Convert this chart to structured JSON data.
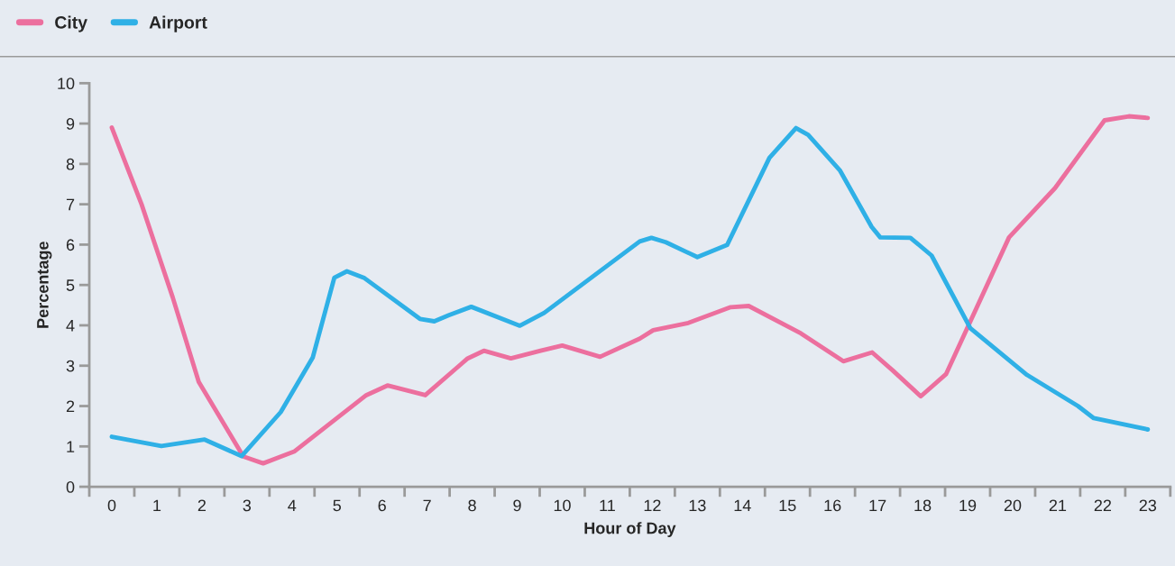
{
  "chart_data": {
    "type": "line",
    "xlabel": "Hour of Day",
    "ylabel": "Percentage",
    "xlim": [
      -0.5,
      23.5
    ],
    "ylim": [
      0,
      10
    ],
    "yticks": [
      0,
      1,
      2,
      3,
      4,
      5,
      6,
      7,
      8,
      9,
      10
    ],
    "xticks": [
      {
        "value": -0.5,
        "label": null
      },
      0,
      {
        "value": 0.5,
        "label": null
      },
      1,
      {
        "value": 1.5,
        "label": null
      },
      2,
      {
        "value": 2.5,
        "label": null
      },
      3,
      {
        "value": 3.5,
        "label": null
      },
      4,
      {
        "value": 4.5,
        "label": null
      },
      5,
      {
        "value": 5.5,
        "label": null
      },
      6,
      {
        "value": 6.5,
        "label": null
      },
      7,
      {
        "value": 7.5,
        "label": null
      },
      8,
      {
        "value": 8.5,
        "label": null
      },
      9,
      {
        "value": 9.5,
        "label": null
      },
      10,
      {
        "value": 10.5,
        "label": null
      },
      11,
      {
        "value": 11.5,
        "label": null
      },
      12,
      {
        "value": 12.5,
        "label": null
      },
      13,
      {
        "value": 13.5,
        "label": null
      },
      14,
      {
        "value": 14.5,
        "label": null
      },
      15,
      {
        "value": 15.5,
        "label": null
      },
      16,
      {
        "value": 16.5,
        "label": null
      },
      17,
      {
        "value": 17.5,
        "label": null
      },
      18,
      {
        "value": 18.5,
        "label": null
      },
      19,
      {
        "value": 19.5,
        "label": null
      },
      20,
      {
        "value": 20.5,
        "label": null
      },
      21,
      {
        "value": 21.5,
        "label": null
      },
      22,
      {
        "value": 22.5,
        "label": null
      },
      23,
      {
        "value": 23.5,
        "label": null
      }
    ],
    "grid": false,
    "legend": "top left",
    "marker": "none",
    "line_style": "solid",
    "series": [
      {
        "name": "City",
        "color": "#ec6f9e",
        "x": [
          0,
          0.66,
          1.35,
          1.93,
          2.92,
          3.36,
          4.06,
          5.65,
          6.12,
          6.96,
          7.9,
          8.26,
          8.86,
          9.52,
          10.0,
          10.84,
          11.72,
          12.02,
          12.8,
          13.74,
          14.14,
          15.3,
          16.24,
          16.88,
          17.34,
          17.96,
          18.52,
          19.92,
          20.94,
          22.04,
          22.58,
          23.0
        ],
        "values": [
          8.9,
          7.0,
          4.7,
          2.6,
          0.75,
          0.58,
          0.88,
          2.27,
          2.51,
          2.27,
          3.18,
          3.37,
          3.18,
          3.37,
          3.5,
          3.22,
          3.67,
          3.88,
          4.06,
          4.45,
          4.48,
          3.8,
          3.11,
          3.33,
          2.88,
          2.24,
          2.79,
          6.18,
          7.4,
          9.08,
          9.18,
          9.14
        ]
      },
      {
        "name": "Airport",
        "color": "#2fb0e6",
        "x": [
          0,
          1.1,
          2.06,
          2.88,
          3.75,
          4.46,
          4.94,
          5.22,
          5.61,
          6.84,
          7.16,
          7.48,
          7.98,
          9.06,
          9.6,
          11.72,
          11.98,
          12.3,
          13.0,
          13.66,
          14.6,
          15.19,
          15.46,
          16.17,
          16.87,
          17.06,
          17.73,
          18.2,
          19.06,
          20.32,
          21.45,
          21.8,
          23.0
        ],
        "values": [
          1.24,
          1.01,
          1.17,
          0.76,
          1.85,
          3.2,
          5.18,
          5.34,
          5.17,
          4.16,
          4.1,
          4.25,
          4.46,
          3.99,
          4.31,
          6.08,
          6.17,
          6.06,
          5.69,
          5.99,
          8.15,
          8.89,
          8.72,
          7.83,
          6.44,
          6.18,
          6.17,
          5.73,
          3.93,
          2.77,
          2.0,
          1.7,
          1.42
        ]
      }
    ]
  }
}
